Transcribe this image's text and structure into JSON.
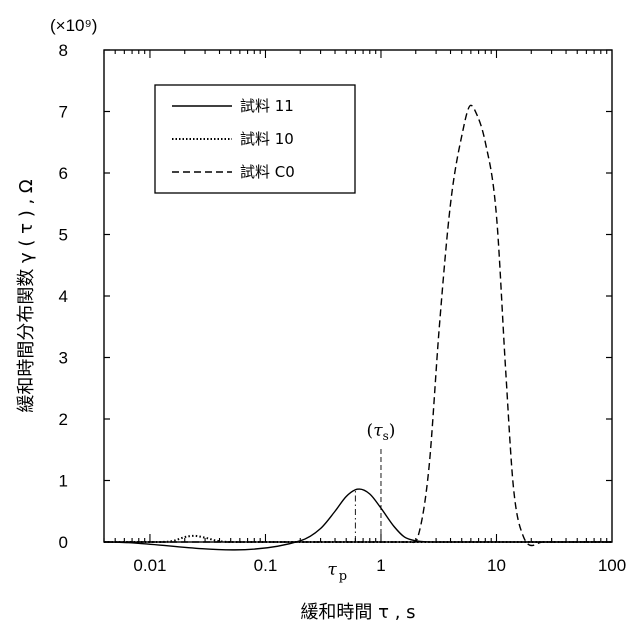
{
  "chart_data": {
    "type": "line",
    "x_scale": "log",
    "xlim": [
      0.004,
      100
    ],
    "ylim": [
      0,
      8
    ],
    "xlabel": "緩和時間 τ , s",
    "ylabel": "緩和時間分布関数 γ ( τ ) , Ω",
    "y_multiplier_label": "(×10⁹)",
    "x_ticks": [
      0.01,
      0.1,
      1,
      10,
      100
    ],
    "x_tick_labels": [
      "0.01",
      "0.1",
      "1",
      "10",
      "100"
    ],
    "y_ticks": [
      0,
      1,
      2,
      3,
      4,
      5,
      6,
      7,
      8
    ],
    "y_tick_labels": [
      "0",
      "1",
      "2",
      "3",
      "4",
      "5",
      "6",
      "7",
      "8"
    ],
    "grid": false,
    "legend_position": "top-left",
    "series": [
      {
        "name": "試料 11",
        "style": "solid",
        "x": [
          0.004,
          0.2,
          0.3,
          0.4,
          0.5,
          0.6,
          0.65,
          0.8,
          1.0,
          1.3,
          1.6,
          2.0,
          3.0,
          100
        ],
        "y": [
          0,
          0.02,
          0.22,
          0.5,
          0.74,
          0.85,
          0.86,
          0.78,
          0.55,
          0.25,
          0.08,
          0.02,
          0,
          0
        ]
      },
      {
        "name": "試料 10",
        "style": "dotted",
        "x": [
          0.004,
          0.012,
          0.016,
          0.02,
          0.024,
          0.03,
          0.038,
          0.05,
          100
        ],
        "y": [
          0,
          0,
          0.02,
          0.08,
          0.1,
          0.07,
          0.02,
          0,
          0
        ]
      },
      {
        "name": "試料 C0",
        "style": "dashed",
        "x": [
          0.004,
          1.8,
          2.1,
          2.6,
          3.2,
          4.0,
          5.0,
          6.0,
          6.5,
          8.0,
          10.0,
          12.0,
          14.0,
          17.0,
          25.0,
          100
        ],
        "y": [
          0,
          0,
          0.1,
          1.2,
          3.5,
          5.5,
          6.6,
          7.1,
          7.02,
          6.5,
          5.3,
          2.8,
          0.9,
          0.1,
          0,
          0
        ]
      }
    ],
    "annotations": [
      {
        "label": "τp",
        "main": "τ",
        "sub": "p",
        "x": 0.6,
        "marker": "dash-dot vertical line"
      },
      {
        "label": "(τs)",
        "main": "τ",
        "sub": "s",
        "x": 1.0,
        "marker": "dashed vertical line"
      }
    ]
  }
}
